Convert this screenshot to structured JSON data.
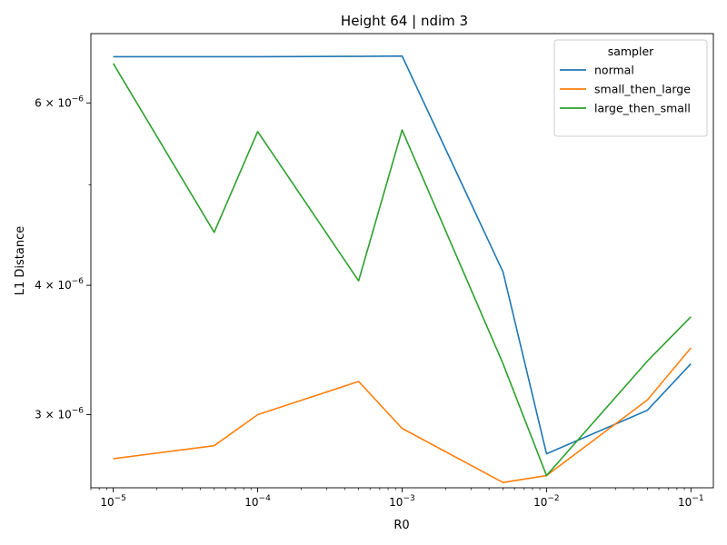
{
  "chart_data": {
    "type": "line",
    "title": "Height 64 | ndim 3",
    "xlabel": "R0",
    "ylabel": "L1 Distance",
    "xscale": "log",
    "yscale": "log",
    "xlim": [
      7e-06,
      0.143
    ],
    "ylim": [
      2.55e-06,
      7e-06
    ],
    "x": [
      1e-05,
      5e-05,
      0.0001,
      0.0005,
      0.001,
      0.005,
      0.01,
      0.05,
      0.1
    ],
    "x_ticks": [
      {
        "value": 1e-05,
        "mant": "10",
        "exp": "−5"
      },
      {
        "value": 0.0001,
        "mant": "10",
        "exp": "−4"
      },
      {
        "value": 0.001,
        "mant": "10",
        "exp": "−3"
      },
      {
        "value": 0.01,
        "mant": "10",
        "exp": "−2"
      },
      {
        "value": 0.1,
        "mant": "10",
        "exp": "−1"
      }
    ],
    "y_ticks": [
      {
        "value": 3e-06,
        "mant": "3 × 10",
        "exp": "−6"
      },
      {
        "value": 4e-06,
        "mant": "4 × 10",
        "exp": "−6"
      },
      {
        "value": 6e-06,
        "mant": "6 × 10",
        "exp": "−6"
      }
    ],
    "y_minor_ticks": [
      5e-06
    ],
    "legend_title": "sampler",
    "legend_position": "top-right",
    "grid": false,
    "series": [
      {
        "name": "normal",
        "color": "#1f77b4",
        "values": [
          6.65e-06,
          6.65e-06,
          6.65e-06,
          6.655e-06,
          6.66e-06,
          4.12e-06,
          2.75e-06,
          3.03e-06,
          3.36e-06
        ]
      },
      {
        "name": "small_then_large",
        "color": "#ff7f0e",
        "values": [
          2.72e-06,
          2.8e-06,
          3e-06,
          3.23e-06,
          2.91e-06,
          2.58e-06,
          2.62e-06,
          3.1e-06,
          3.48e-06
        ]
      },
      {
        "name": "large_then_small",
        "color": "#2ca02c",
        "values": [
          6.55e-06,
          4.5e-06,
          5.63e-06,
          4.04e-06,
          5.65e-06,
          3.36e-06,
          2.62e-06,
          3.38e-06,
          3.73e-06
        ]
      }
    ]
  }
}
